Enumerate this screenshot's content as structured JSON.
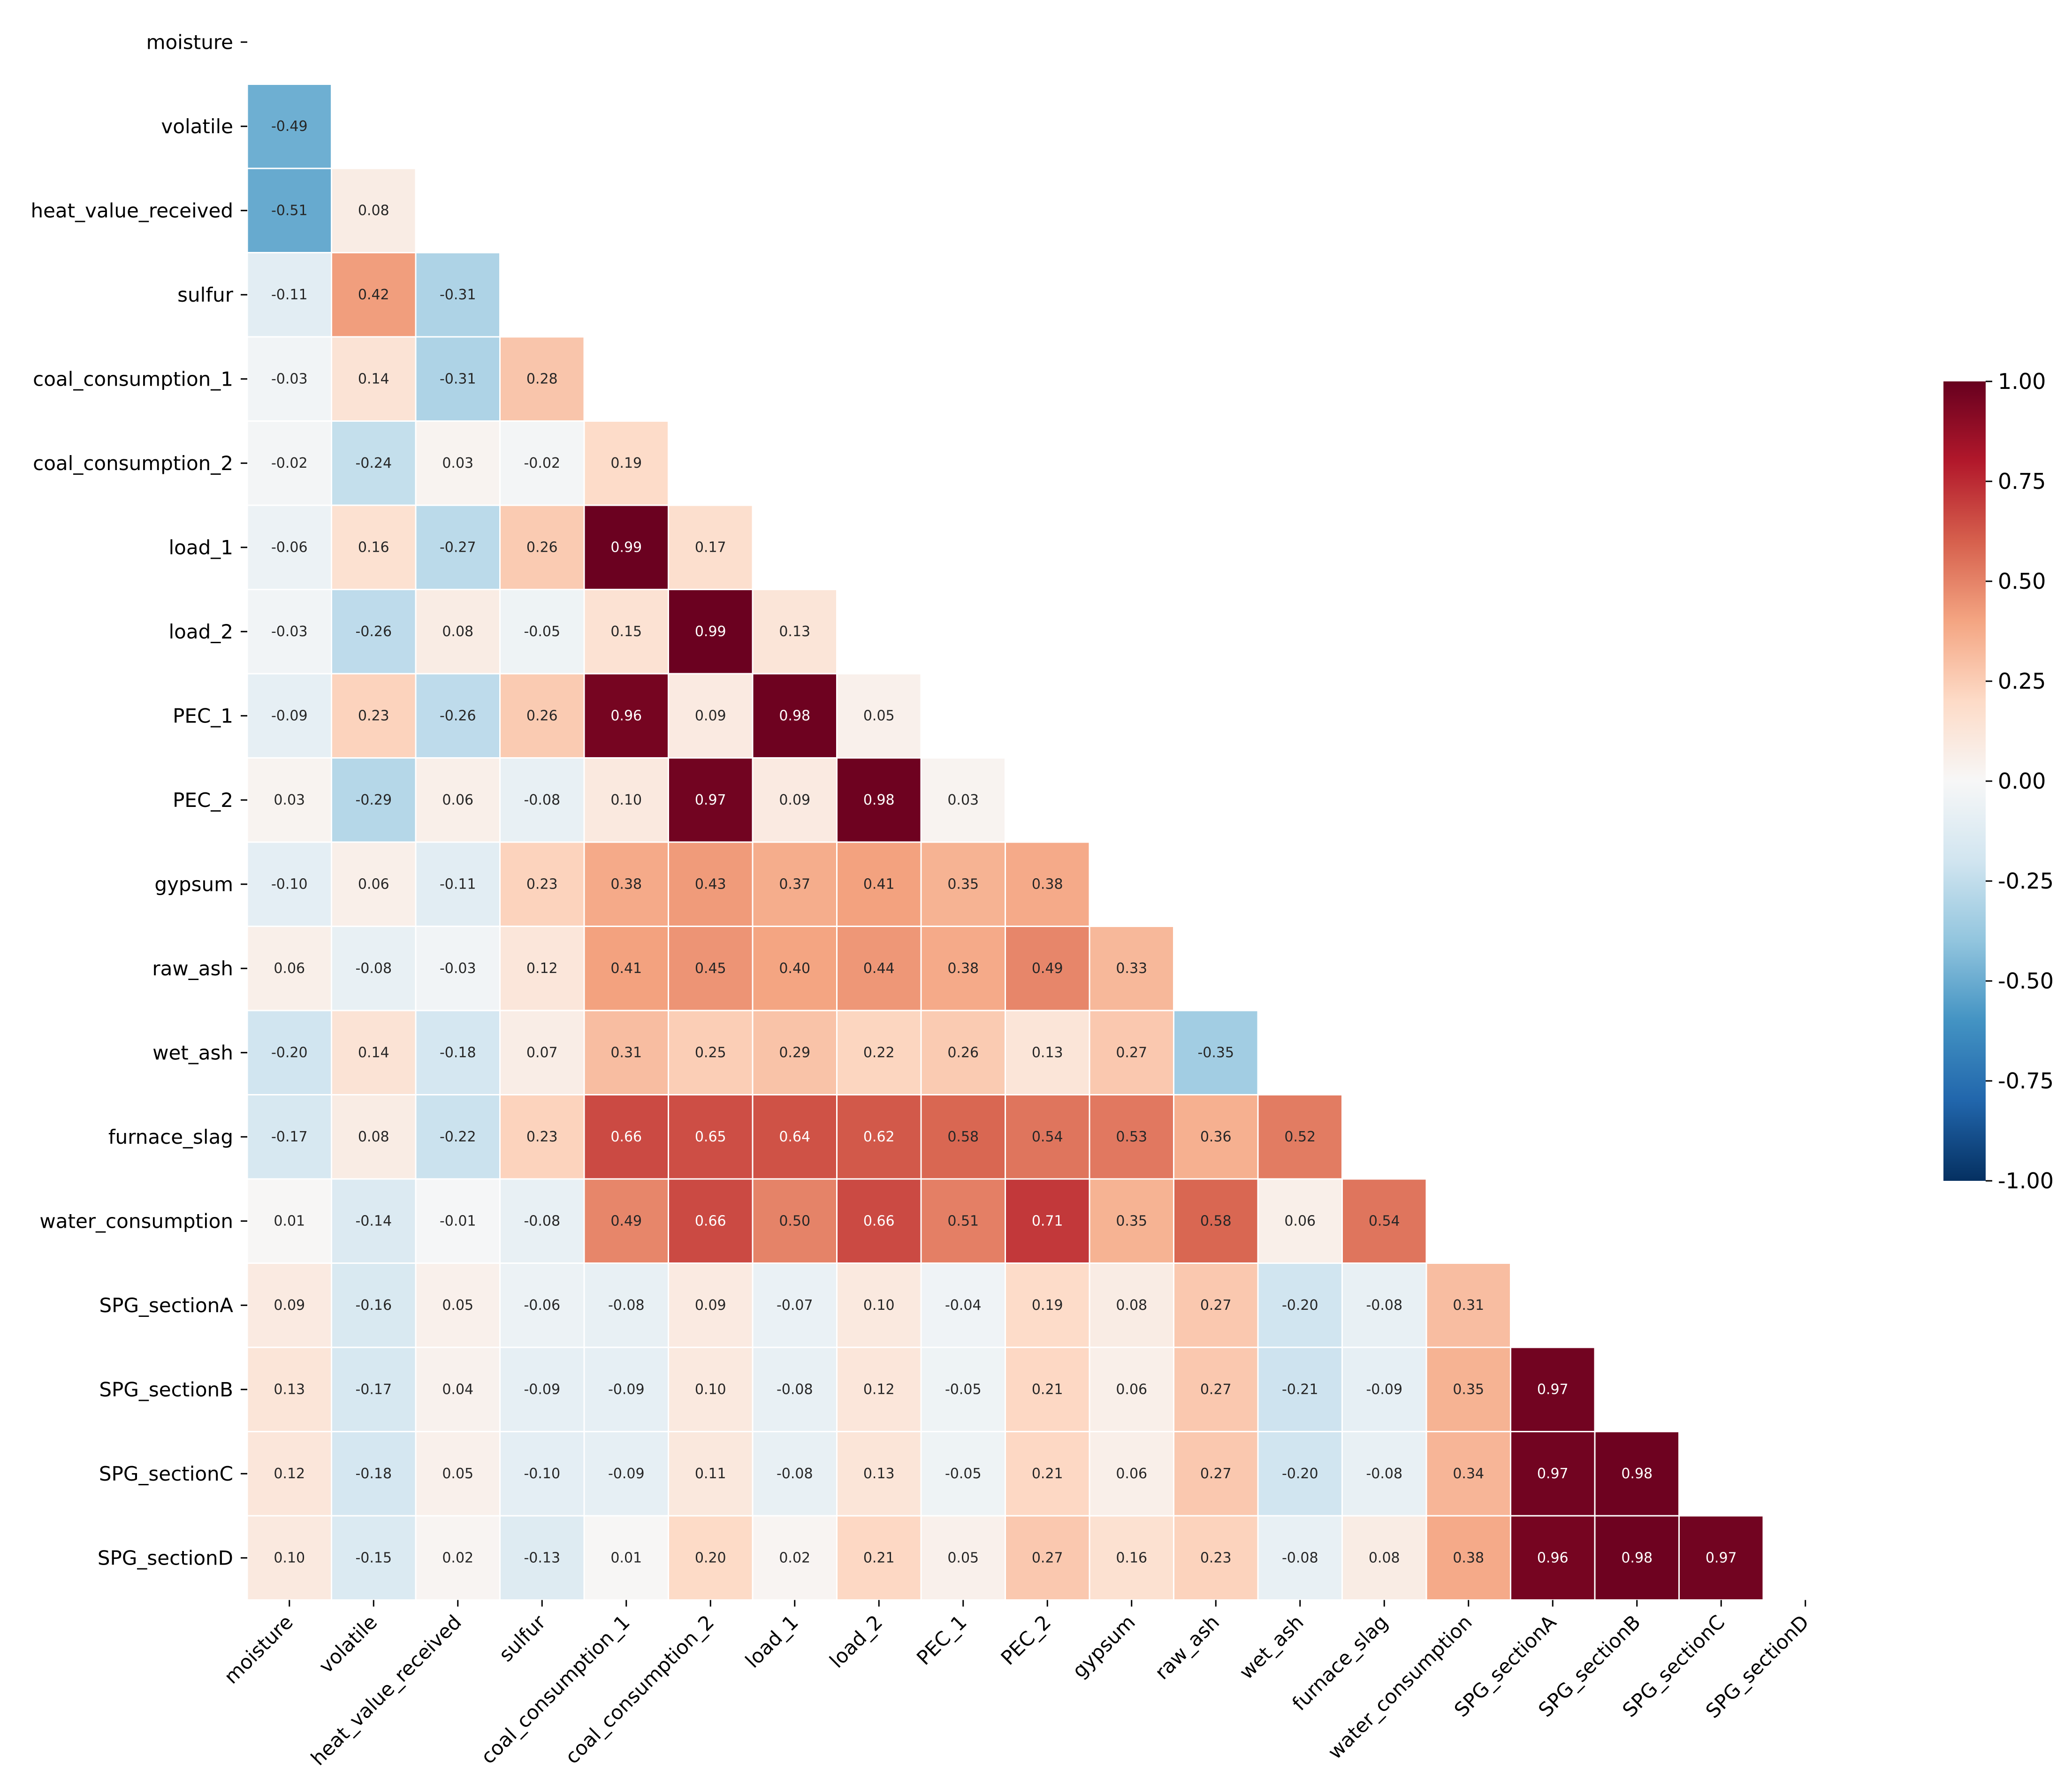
{
  "chart_data": {
    "type": "heatmap",
    "variant": "lower-triangle correlation matrix",
    "title": "",
    "xlabel": "",
    "ylabel": "",
    "labels": [
      "moisture",
      "volatile",
      "heat_value_received",
      "sulfur",
      "coal_consumption_1",
      "coal_consumption_2",
      "load_1",
      "load_2",
      "PEC_1",
      "PEC_2",
      "gypsum",
      "raw_ash",
      "wet_ash",
      "furnace_slag",
      "water_consumption",
      "SPG_sectionA",
      "SPG_sectionB",
      "SPG_sectionC",
      "SPG_sectionD"
    ],
    "matrix": [
      [],
      [
        -0.49
      ],
      [
        -0.51,
        0.08
      ],
      [
        -0.11,
        0.42,
        -0.31
      ],
      [
        -0.03,
        0.14,
        -0.31,
        0.28
      ],
      [
        -0.02,
        -0.24,
        0.03,
        -0.02,
        0.19
      ],
      [
        -0.06,
        0.16,
        -0.27,
        0.26,
        0.99,
        0.17
      ],
      [
        -0.03,
        -0.26,
        0.08,
        -0.05,
        0.15,
        0.99,
        0.13
      ],
      [
        -0.09,
        0.23,
        -0.26,
        0.26,
        0.96,
        0.09,
        0.98,
        0.05
      ],
      [
        0.03,
        -0.29,
        0.06,
        -0.08,
        0.1,
        0.97,
        0.09,
        0.98,
        0.03
      ],
      [
        -0.1,
        0.06,
        -0.11,
        0.23,
        0.38,
        0.43,
        0.37,
        0.41,
        0.35,
        0.38
      ],
      [
        0.06,
        -0.08,
        -0.03,
        0.12,
        0.41,
        0.45,
        0.4,
        0.44,
        0.38,
        0.49,
        0.33
      ],
      [
        -0.2,
        0.14,
        -0.18,
        0.07,
        0.31,
        0.25,
        0.29,
        0.22,
        0.26,
        0.13,
        0.27,
        -0.35
      ],
      [
        -0.17,
        0.08,
        -0.22,
        0.23,
        0.66,
        0.65,
        0.64,
        0.62,
        0.58,
        0.54,
        0.53,
        0.36,
        0.52
      ],
      [
        0.01,
        -0.14,
        -0.01,
        -0.08,
        0.49,
        0.66,
        0.5,
        0.66,
        0.51,
        0.71,
        0.35,
        0.58,
        0.06,
        0.54
      ],
      [
        0.09,
        -0.16,
        0.05,
        -0.06,
        -0.08,
        0.09,
        -0.07,
        0.1,
        -0.04,
        0.19,
        0.08,
        0.27,
        -0.2,
        -0.08,
        0.31
      ],
      [
        0.13,
        -0.17,
        0.04,
        -0.09,
        -0.09,
        0.1,
        -0.08,
        0.12,
        -0.05,
        0.21,
        0.06,
        0.27,
        -0.21,
        -0.09,
        0.35,
        0.97
      ],
      [
        0.12,
        -0.18,
        0.05,
        -0.1,
        -0.09,
        0.11,
        -0.08,
        0.13,
        -0.05,
        0.21,
        0.06,
        0.27,
        -0.2,
        -0.08,
        0.34,
        0.97,
        0.98
      ],
      [
        0.1,
        -0.15,
        0.02,
        -0.13,
        0.01,
        0.2,
        0.02,
        0.21,
        0.05,
        0.27,
        0.16,
        0.23,
        -0.08,
        0.08,
        0.38,
        0.96,
        0.98,
        0.97
      ]
    ],
    "value_format": "2 decimals",
    "colorbar": {
      "colormap": "RdBu_r",
      "vmin": -1.0,
      "vmax": 1.0,
      "ticks": [
        "1.00",
        "0.75",
        "0.50",
        "0.25",
        "0.00",
        "-0.25",
        "-0.50",
        "-0.75",
        "-1.00"
      ],
      "colors": [
        "#053061",
        "#2166ac",
        "#4393c3",
        "#92c5de",
        "#d1e5f0",
        "#f7f7f7",
        "#fddbc7",
        "#f4a582",
        "#d6604d",
        "#b2182b",
        "#67001f"
      ],
      "placement": "right"
    },
    "grid": false
  }
}
